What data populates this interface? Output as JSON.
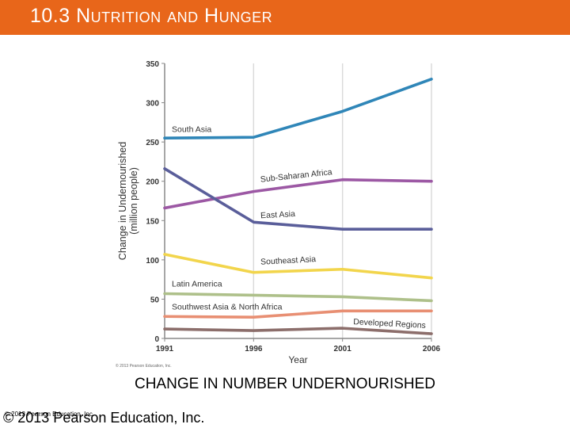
{
  "slide": {
    "title": "10.3 Nutrition and Hunger",
    "caption": "CHANGE IN NUMBER UNDERNOURISHED",
    "footer_small": "© 2013 Pearson Education, Inc.",
    "footer_big": "© 2013 Pearson Education, Inc."
  },
  "colors": {
    "header": "#e8661a",
    "grid": "#d9d9d9",
    "axis": "#888888"
  },
  "chart_data": {
    "type": "line",
    "title": "",
    "xlabel": "Year",
    "ylabel": "Change in Undernourished (million people)",
    "ylabel_lines": [
      "Change in Undernourished",
      "(million people)"
    ],
    "x": [
      1991,
      1996,
      2001,
      2006
    ],
    "xlim": [
      1991,
      2006
    ],
    "ylim": [
      0,
      350
    ],
    "yticks": [
      0,
      50,
      100,
      150,
      200,
      250,
      300,
      350
    ],
    "xticks": [
      1991,
      1996,
      2001,
      2006
    ],
    "grid": "vertical",
    "credit": "© 2013 Pearson Education, Inc.",
    "series": [
      {
        "name": "South Asia",
        "values": [
          255,
          256,
          289,
          330
        ],
        "color": "#2f86b8",
        "label_at": [
          1991.4,
          263
        ],
        "rotate": 0
      },
      {
        "name": "Sub-Saharan Africa",
        "values": [
          166,
          187,
          202,
          200
        ],
        "color": "#9c58a4",
        "label_at": [
          1996.4,
          199
        ],
        "rotate": -6
      },
      {
        "name": "East Asia",
        "values": [
          216,
          148,
          139,
          139
        ],
        "color": "#5a5e9a",
        "label_at": [
          1996.4,
          153
        ],
        "rotate": -3
      },
      {
        "name": "Southeast Asia",
        "values": [
          107,
          84,
          88,
          77
        ],
        "color": "#f2d54c",
        "label_at": [
          1996.4,
          94
        ],
        "rotate": -3
      },
      {
        "name": "Latin America",
        "values": [
          57,
          55,
          53,
          48
        ],
        "color": "#aec08a",
        "label_at": [
          1991.4,
          66
        ],
        "rotate": 0
      },
      {
        "name": "Southwest Asia & North Africa",
        "values": [
          28,
          27,
          35,
          35
        ],
        "color": "#e88f73",
        "label_at": [
          1991.4,
          37
        ],
        "rotate": 0
      },
      {
        "name": "Developed Regions",
        "values": [
          12,
          10,
          13,
          6
        ],
        "color": "#8c6e6b",
        "label_at": [
          2001.6,
          18
        ],
        "rotate": 3
      }
    ]
  }
}
